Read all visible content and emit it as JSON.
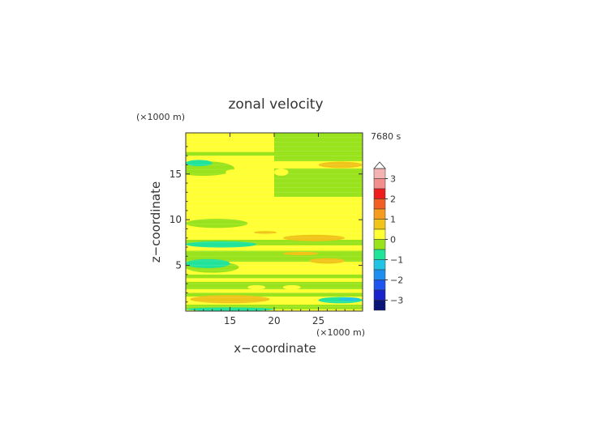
{
  "chart_data": {
    "type": "heatmap",
    "title": "zonal velocity",
    "xlabel": "x−coordinate",
    "ylabel": "z−coordinate",
    "x_unit": "(×1000 m)",
    "y_unit": "(×1000 m)",
    "time_label": "7680 s",
    "xlim": [
      10,
      30
    ],
    "ylim": [
      0,
      19.5
    ],
    "x_ticks": [
      "15",
      "20",
      "25"
    ],
    "y_ticks": [
      "5",
      "10",
      "15"
    ],
    "colorbar": {
      "tick_labels": [
        "3",
        "2",
        "1",
        "0",
        "−1",
        "−2",
        "−3"
      ],
      "levels": [
        {
          "lo": 3.0,
          "hi": 3.5,
          "color": "#f4b3b3"
        },
        {
          "lo": 2.5,
          "hi": 3.0,
          "color": "#f28e8e"
        },
        {
          "lo": 2.0,
          "hi": 2.5,
          "color": "#ee1c1c"
        },
        {
          "lo": 1.5,
          "hi": 2.0,
          "color": "#f25f24"
        },
        {
          "lo": 1.0,
          "hi": 1.5,
          "color": "#f59c1f"
        },
        {
          "lo": 0.5,
          "hi": 1.0,
          "color": "#f0c419"
        },
        {
          "lo": 0.0,
          "hi": 0.5,
          "color": "#ffff33"
        },
        {
          "lo": -0.5,
          "hi": 0.0,
          "color": "#99e31c"
        },
        {
          "lo": -1.0,
          "hi": -0.5,
          "color": "#22e39a"
        },
        {
          "lo": -1.5,
          "hi": -1.0,
          "color": "#22c4e3"
        },
        {
          "lo": -2.0,
          "hi": -1.5,
          "color": "#1e8ff0"
        },
        {
          "lo": -2.5,
          "hi": -2.0,
          "color": "#1e55ee"
        },
        {
          "lo": -3.0,
          "hi": -2.5,
          "color": "#1a22cc"
        },
        {
          "lo": -3.5,
          "hi": -3.0,
          "color": "#0c1577"
        }
      ],
      "extend_top": true
    },
    "background_level": 0.25,
    "regions": [
      {
        "shape": "rect",
        "x": [
          10,
          20
        ],
        "z": [
          17.0,
          17.4
        ],
        "value": -0.25
      },
      {
        "shape": "rect",
        "x": [
          20,
          30
        ],
        "z": [
          16.4,
          19.5
        ],
        "value": -0.25
      },
      {
        "shape": "rect",
        "x": [
          20,
          30
        ],
        "z": [
          12.5,
          15.6
        ],
        "value": -0.25
      },
      {
        "shape": "rect",
        "x": [
          10,
          30
        ],
        "z": [
          7.2,
          7.8
        ],
        "value": -0.25
      },
      {
        "shape": "rect",
        "x": [
          10,
          30
        ],
        "z": [
          5.4,
          6.6
        ],
        "value": -0.25
      },
      {
        "shape": "rect",
        "x": [
          10,
          30
        ],
        "z": [
          3.6,
          4.0
        ],
        "value": -0.25
      },
      {
        "shape": "rect",
        "x": [
          10,
          30
        ],
        "z": [
          2.4,
          3.2
        ],
        "value": -0.25
      },
      {
        "shape": "rect",
        "x": [
          10,
          30
        ],
        "z": [
          1.6,
          2.0
        ],
        "value": -0.25
      },
      {
        "shape": "rect",
        "x": [
          10,
          30
        ],
        "z": [
          0.2,
          0.7
        ],
        "value": -0.25
      },
      {
        "shape": "ellipse",
        "x": 12,
        "z": 15.6,
        "rx": 3.5,
        "rz": 0.8,
        "value": -0.25
      },
      {
        "shape": "ellipse",
        "x": 13.5,
        "z": 9.6,
        "rx": 3.5,
        "rz": 0.5,
        "value": -0.25
      },
      {
        "shape": "ellipse",
        "x": 13,
        "z": 4.8,
        "rx": 3,
        "rz": 0.6,
        "value": -0.25
      },
      {
        "shape": "ellipse",
        "x": 11.5,
        "z": 16.2,
        "rx": 1.5,
        "rz": 0.35,
        "value": -0.75
      },
      {
        "shape": "ellipse",
        "x": 14,
        "z": 7.3,
        "rx": 4,
        "rz": 0.35,
        "value": -0.75
      },
      {
        "shape": "ellipse",
        "x": 12.5,
        "z": 5.2,
        "rx": 2.5,
        "rz": 0.5,
        "value": -0.75
      },
      {
        "shape": "ellipse",
        "x": 27.5,
        "z": 1.2,
        "rx": 2.5,
        "rz": 0.35,
        "value": -0.75
      },
      {
        "shape": "ellipse",
        "x": 28.5,
        "z": 1.3,
        "rx": 1.2,
        "rz": 0.2,
        "value": -1.25
      },
      {
        "shape": "ellipse",
        "x": 15,
        "z": 0.2,
        "rx": 5,
        "rz": 0.2,
        "value": -0.75
      },
      {
        "shape": "ellipse",
        "x": 15.5,
        "z": 15.2,
        "rx": 1.0,
        "rz": 0.3,
        "value": 0.25
      },
      {
        "shape": "ellipse",
        "x": 20.8,
        "z": 15.2,
        "rx": 0.8,
        "rz": 0.4,
        "value": 0.25
      },
      {
        "shape": "ellipse",
        "x": 18,
        "z": 2.6,
        "rx": 1.0,
        "rz": 0.25,
        "value": 0.25
      },
      {
        "shape": "ellipse",
        "x": 22,
        "z": 2.6,
        "rx": 1.0,
        "rz": 0.25,
        "value": 0.25
      },
      {
        "shape": "ellipse",
        "x": 27.5,
        "z": 16.0,
        "rx": 2.5,
        "rz": 0.35,
        "value": 0.75
      },
      {
        "shape": "ellipse",
        "x": 19,
        "z": 8.6,
        "rx": 1.3,
        "rz": 0.15,
        "value": 0.75
      },
      {
        "shape": "ellipse",
        "x": 24.5,
        "z": 8.0,
        "rx": 3.5,
        "rz": 0.35,
        "value": 0.75
      },
      {
        "shape": "ellipse",
        "x": 23,
        "z": 6.3,
        "rx": 2.0,
        "rz": 0.2,
        "value": 0.75
      },
      {
        "shape": "ellipse",
        "x": 26,
        "z": 5.5,
        "rx": 2.0,
        "rz": 0.3,
        "value": 0.75
      },
      {
        "shape": "ellipse",
        "x": 15,
        "z": 1.3,
        "rx": 4.5,
        "rz": 0.45,
        "value": 0.75
      }
    ]
  }
}
